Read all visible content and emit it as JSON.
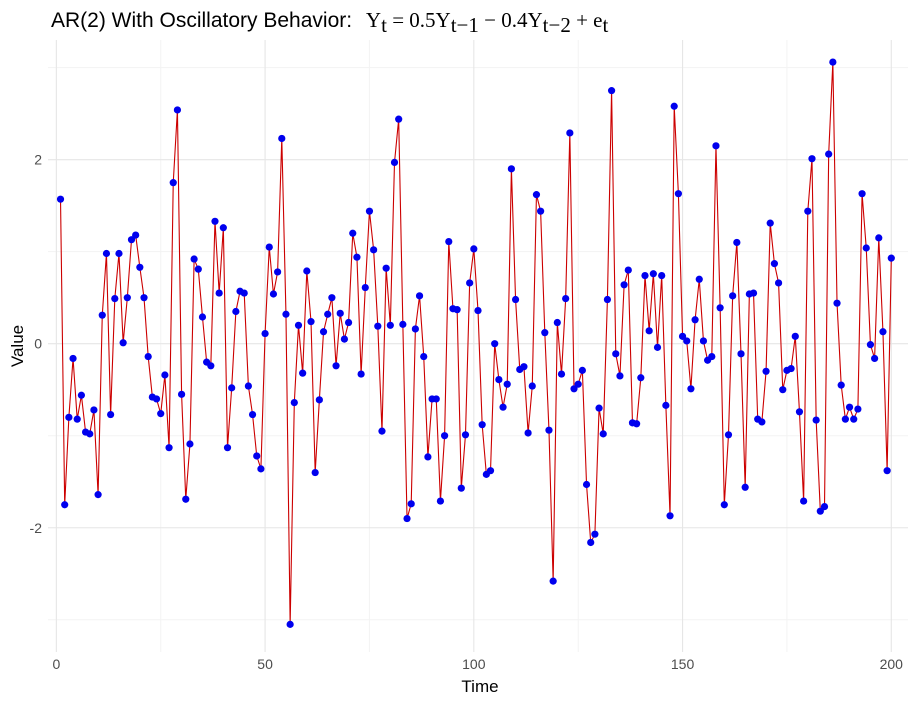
{
  "chart_data": {
    "type": "line",
    "title": "AR(2) With Oscillatory Behavior:  Y_t = 0.5Y_{t-1} - 0.4Y_{t-2} + e_t",
    "title_parts": {
      "prefix": "AR(2) With Oscillatory Behavior:",
      "y": "Y",
      "sub_t": "t",
      "eq1": " = 0.5Y",
      "sub_t1": "t−1",
      "minus": " − 0.4Y",
      "sub_t2": "t−2",
      "plus": " + e",
      "sub_t3": "t"
    },
    "xlabel": "Time",
    "ylabel": "Value",
    "xlim": [
      -2,
      204
    ],
    "ylim": [
      -3.35,
      3.3
    ],
    "x_ticks": [
      0,
      50,
      100,
      150,
      200
    ],
    "y_ticks": [
      -2,
      0,
      2
    ],
    "grid": true,
    "line_color": "#cc0000",
    "point_color": "#0000ee",
    "series": [
      {
        "x": [
          1,
          2,
          3,
          4,
          5,
          6,
          7,
          8,
          9,
          10,
          11,
          12,
          13,
          14,
          15,
          16,
          17,
          18,
          19,
          20,
          21,
          22,
          23,
          24,
          25,
          26,
          27,
          28,
          29,
          30,
          31,
          32,
          33,
          34,
          35,
          36,
          37,
          38,
          39,
          40,
          41,
          42,
          43,
          44,
          45,
          46,
          47,
          48,
          49,
          50,
          51,
          52,
          53,
          54,
          55,
          56,
          57,
          58,
          59,
          60,
          61,
          62,
          63,
          64,
          65,
          66,
          67,
          68,
          69,
          70,
          71,
          72,
          73,
          74,
          75,
          76,
          77,
          78,
          79,
          80,
          81,
          82,
          83,
          84,
          85,
          86,
          87,
          88,
          89,
          90,
          91,
          92,
          93,
          94,
          95,
          96,
          97,
          98,
          99,
          100,
          101,
          102,
          103,
          104,
          105,
          106,
          107,
          108,
          109,
          110,
          111,
          112,
          113,
          114,
          115,
          116,
          117,
          118,
          119,
          120,
          121,
          122,
          123,
          124,
          125,
          126,
          127,
          128,
          129,
          130,
          131,
          132,
          133,
          134,
          135,
          136,
          137,
          138,
          139,
          140,
          141,
          142,
          143,
          144,
          145,
          146,
          147,
          148,
          149,
          150,
          151,
          152,
          153,
          154,
          155,
          156,
          157,
          158,
          159,
          160,
          161,
          162,
          163,
          164,
          165,
          166,
          167,
          168,
          169,
          170,
          171,
          172,
          173,
          174,
          175,
          176,
          177,
          178,
          179,
          180,
          181,
          182,
          183,
          184,
          185,
          186,
          187,
          188,
          189,
          190,
          191,
          192,
          193,
          194,
          195,
          196,
          197,
          198,
          199,
          200
        ],
        "y": [
          1.57,
          -1.75,
          -0.8,
          -0.16,
          -0.82,
          -0.56,
          -0.96,
          -0.98,
          -0.72,
          -1.64,
          0.31,
          0.98,
          -0.77,
          0.49,
          0.98,
          0.01,
          0.5,
          1.13,
          1.18,
          0.83,
          0.5,
          -0.14,
          -0.58,
          -0.6,
          -0.76,
          -0.34,
          -1.13,
          1.75,
          2.54,
          -0.55,
          -1.69,
          -1.09,
          0.92,
          0.81,
          0.29,
          -0.2,
          -0.24,
          1.33,
          0.55,
          1.26,
          -1.13,
          -0.48,
          0.35,
          0.57,
          0.55,
          -0.46,
          -0.77,
          -1.22,
          -1.36,
          0.11,
          1.05,
          0.54,
          0.78,
          2.23,
          0.32,
          -3.05,
          -0.64,
          0.2,
          -0.32,
          0.79,
          0.24,
          -1.4,
          -0.61,
          0.13,
          0.32,
          0.5,
          -0.24,
          0.33,
          0.05,
          0.23,
          1.2,
          0.94,
          -0.33,
          0.61,
          1.44,
          1.02,
          0.19,
          -0.95,
          0.82,
          0.2,
          1.97,
          2.44,
          0.21,
          -1.9,
          -1.74,
          0.16,
          0.52,
          -0.14,
          -1.23,
          -0.6,
          -0.6,
          -1.71,
          -1.0,
          1.11,
          0.38,
          0.37,
          -1.57,
          -0.99,
          0.66,
          1.03,
          0.36,
          -0.88,
          -1.42,
          -1.38,
          0.0,
          -0.39,
          -0.69,
          -0.44,
          1.9,
          0.48,
          -0.28,
          -0.25,
          -0.97,
          -0.46,
          1.62,
          1.44,
          0.12,
          -0.94,
          -2.58,
          0.23,
          -0.33,
          0.49,
          2.29,
          -0.49,
          -0.44,
          -0.29,
          -1.53,
          -2.16,
          -2.07,
          -0.7,
          -0.98,
          0.48,
          2.75,
          -0.11,
          -0.35,
          0.64,
          0.8,
          -0.86,
          -0.87,
          -0.37,
          0.74,
          0.14,
          0.76,
          -0.04,
          0.74,
          -0.67,
          -1.87,
          2.58,
          1.63,
          0.08,
          0.03,
          -0.49,
          0.26,
          0.7,
          0.03,
          -0.18,
          -0.14,
          2.15,
          0.39,
          -1.75,
          -0.99,
          0.52,
          1.1,
          -0.11,
          -1.56,
          0.54,
          0.55,
          -0.82,
          -0.85,
          -0.3,
          1.31,
          0.87,
          0.66,
          -0.5,
          -0.29,
          -0.27,
          0.08,
          -0.74,
          -1.71,
          1.44,
          2.01,
          -0.83,
          -1.82,
          -1.77,
          2.06,
          3.06,
          0.44,
          -0.45,
          -0.82,
          -0.69,
          -0.82,
          -0.71,
          1.63,
          1.04,
          -0.01,
          -0.16,
          1.15,
          0.13,
          -1.38,
          0.93
        ]
      }
    ]
  }
}
